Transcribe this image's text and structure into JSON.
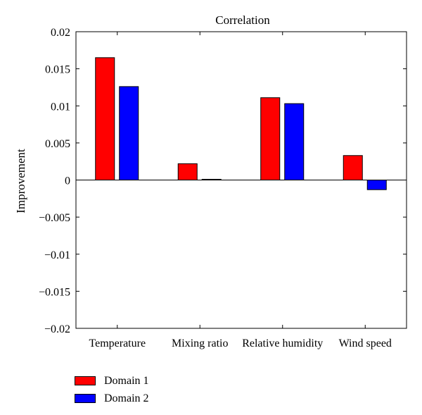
{
  "chart_data": {
    "type": "bar",
    "title": "Correlation",
    "xlabel": "",
    "ylabel": "Improvement",
    "categories": [
      "Temperature",
      "Mixing ratio",
      "Relative humidity",
      "Wind speed"
    ],
    "series": [
      {
        "name": "Domain 1",
        "color": "#ff0000",
        "values": [
          0.0165,
          0.0022,
          0.0111,
          0.0033
        ]
      },
      {
        "name": "Domain 2",
        "color": "#0000ff",
        "values": [
          0.0126,
          0.0001,
          0.0103,
          -0.0013
        ]
      }
    ],
    "ylim": [
      -0.02,
      0.02
    ],
    "yticks": [
      0.02,
      0.015,
      0.01,
      0.005,
      0,
      -0.005,
      -0.01,
      -0.015,
      -0.02
    ],
    "ytick_labels": [
      "0.02",
      "0.015",
      "0.01",
      "0.005",
      "0",
      "−0.005",
      "−0.01",
      "−0.015",
      "−0.02"
    ],
    "grid": false,
    "legend_position": "bottom-left-outside"
  }
}
